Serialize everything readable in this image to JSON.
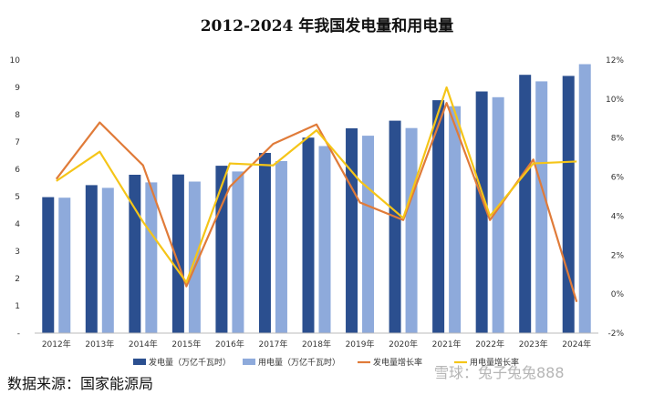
{
  "chart_data": {
    "type": "bar",
    "title": "2012-2024 年我国发电量和用电量",
    "categories": [
      "2012年",
      "2013年",
      "2014年",
      "2015年",
      "2016年",
      "2017年",
      "2018年",
      "2019年",
      "2020年",
      "2021年",
      "2022年",
      "2023年",
      "2024年"
    ],
    "series": [
      {
        "name": "发电量（万亿千瓦时）",
        "type": "bar",
        "axis": "left",
        "color": "#2b4f8f",
        "values": [
          4.98,
          5.42,
          5.8,
          5.81,
          6.13,
          6.6,
          7.16,
          7.5,
          7.78,
          8.53,
          8.85,
          9.46,
          9.42
        ]
      },
      {
        "name": "用电量（万亿千瓦时）",
        "type": "bar",
        "axis": "left",
        "color": "#8eaadb",
        "values": [
          4.96,
          5.32,
          5.52,
          5.55,
          5.92,
          6.3,
          6.85,
          7.23,
          7.51,
          8.31,
          8.64,
          9.22,
          9.85
        ]
      },
      {
        "name": "发电量增长率",
        "type": "line",
        "axis": "right",
        "color": "#e07b39",
        "values": [
          5.9,
          8.8,
          6.6,
          0.4,
          5.5,
          7.7,
          8.7,
          4.7,
          3.8,
          9.8,
          3.8,
          6.9,
          -0.4
        ]
      },
      {
        "name": "用电量增长率",
        "type": "line",
        "axis": "right",
        "color": "#f5c518",
        "values": [
          5.8,
          7.3,
          3.7,
          0.6,
          6.7,
          6.6,
          8.4,
          5.8,
          3.9,
          10.6,
          4,
          6.7,
          6.8
        ]
      }
    ],
    "yleft": {
      "min": 0,
      "max": 10,
      "step": 1,
      "zero_label": "-",
      "ticks": [
        "10",
        "9",
        "8",
        "7",
        "6",
        "5",
        "4",
        "3",
        "2",
        "1",
        "-"
      ]
    },
    "yright": {
      "min": -2,
      "max": 12,
      "step": 2,
      "ticks": [
        "12%",
        "10%",
        "8%",
        "6%",
        "4%",
        "2%",
        "0%",
        "-2%"
      ]
    },
    "legend_position": "bottom",
    "grid": false
  },
  "footer": {
    "source": "数据来源：国家能源局",
    "watermark": "雪球：兔子兔兔888"
  }
}
